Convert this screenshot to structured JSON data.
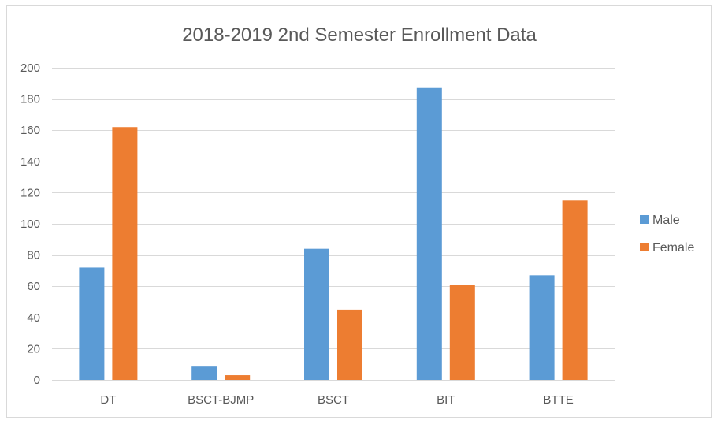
{
  "chart_data": {
    "type": "bar",
    "title": "2018-2019 2nd Semester Enrollment Data",
    "categories": [
      "DT",
      "BSCT-BJMP",
      "BSCT",
      "BIT",
      "BTTE"
    ],
    "series": [
      {
        "name": "Male",
        "color": "#5b9bd5",
        "values": [
          72,
          9,
          84,
          187,
          67
        ]
      },
      {
        "name": "Female",
        "color": "#ed7d31",
        "values": [
          162,
          3,
          45,
          61,
          115
        ]
      }
    ],
    "y_ticks": [
      "0",
      "20",
      "40",
      "60",
      "80",
      "100",
      "120",
      "140",
      "160",
      "180",
      "200"
    ],
    "ylim": [
      0,
      200
    ],
    "xlabel": "",
    "ylabel": "",
    "grid": true,
    "legend_position": "right"
  }
}
